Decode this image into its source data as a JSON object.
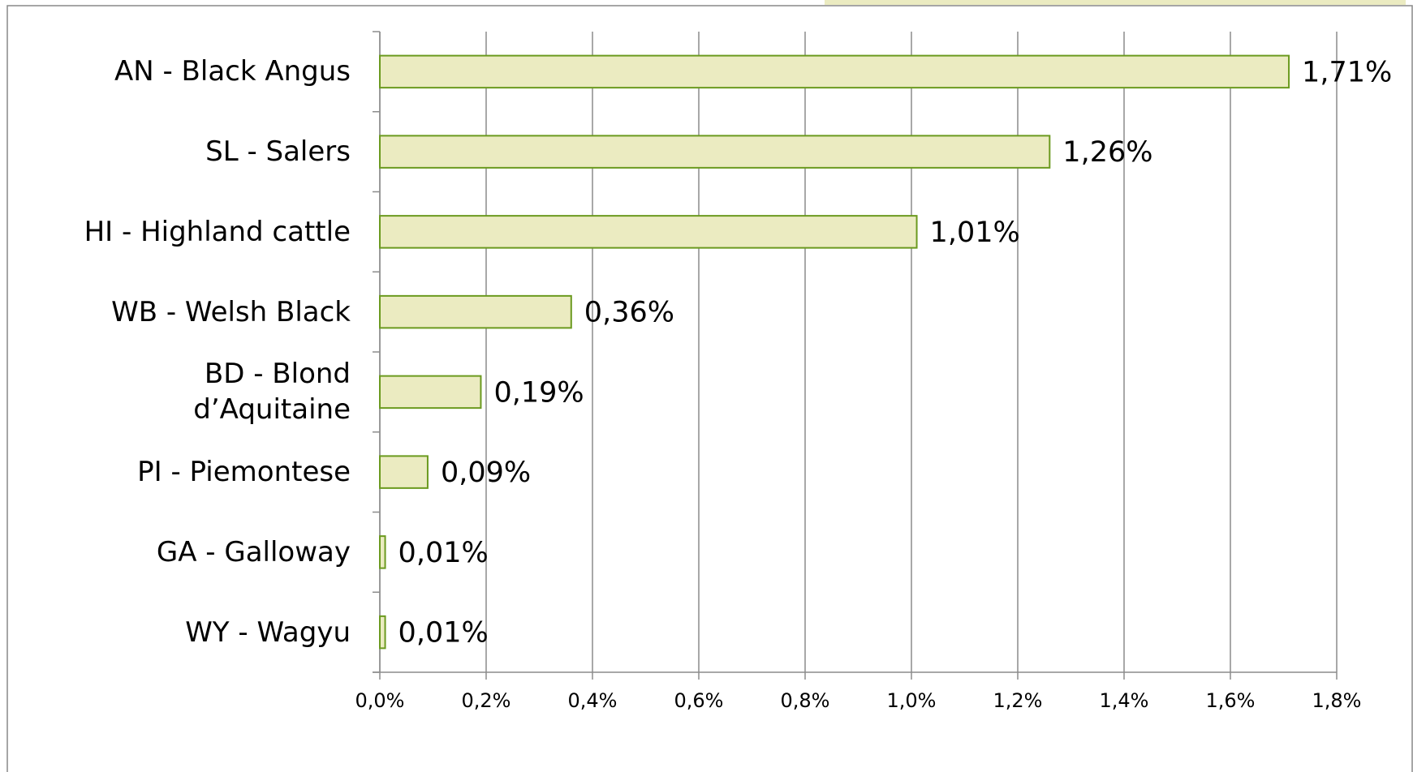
{
  "chart_data": {
    "type": "hbar",
    "categories": [
      "AN - Black Angus",
      "SL - Salers",
      "HI - Highland cattle",
      "WB - Welsh Black",
      "BD - Blond\nd’Aquitaine",
      "PI - Piemontese",
      "GA - Galloway",
      "WY - Wagyu"
    ],
    "values": [
      1.71,
      1.26,
      1.01,
      0.36,
      0.19,
      0.09,
      0.01,
      0.01
    ],
    "value_labels": [
      "1,71%",
      "1,26%",
      "1,01%",
      "0,36%",
      "0,19%",
      "0,09%",
      "0,01%",
      "0,01%"
    ],
    "color": "#ebebc1",
    "edge_color": "#6b9a1f",
    "xlim": [
      0,
      1.8
    ],
    "xticks": [
      {
        "value": 0,
        "label": "0,0%"
      },
      {
        "value": 0.2,
        "label": "0,2%"
      },
      {
        "value": 0.4,
        "label": "0,4%"
      },
      {
        "value": 0.6,
        "label": "0,6%"
      },
      {
        "value": 0.8,
        "label": "0,8%"
      },
      {
        "value": 1.0,
        "label": "1,0%"
      },
      {
        "value": 1.2,
        "label": "1,2%"
      },
      {
        "value": 1.4,
        "label": "1,4%"
      },
      {
        "value": 1.6,
        "label": "1,6%"
      },
      {
        "value": 1.8,
        "label": "1,8%"
      }
    ],
    "grid": true
  }
}
